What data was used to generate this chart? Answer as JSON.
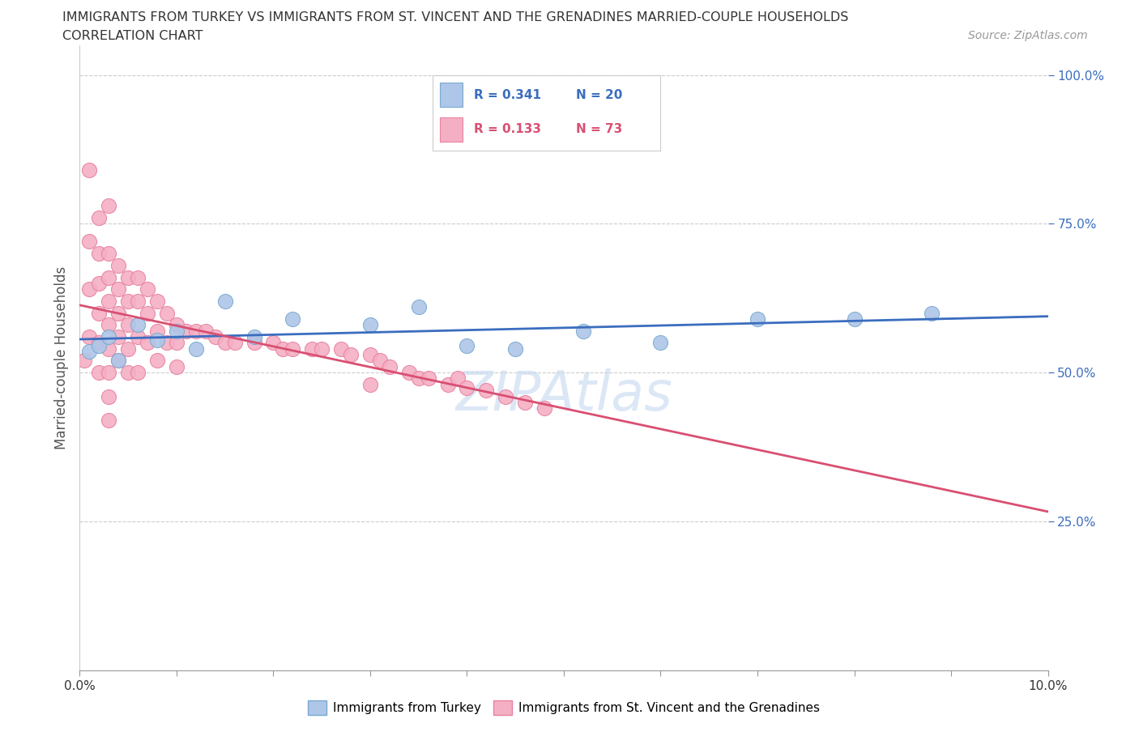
{
  "title_line1": "IMMIGRANTS FROM TURKEY VS IMMIGRANTS FROM ST. VINCENT AND THE GRENADINES MARRIED-COUPLE HOUSEHOLDS",
  "title_line2": "CORRELATION CHART",
  "source_text": "Source: ZipAtlas.com",
  "ylabel": "Married-couple Households",
  "legend_turkey_R": "R = 0.341",
  "legend_turkey_N": "N = 20",
  "legend_svg_R": "R = 0.133",
  "legend_svg_N": "N = 73",
  "turkey_color": "#aec6e8",
  "turkey_edge_color": "#7aaad0",
  "svg_color": "#f4afc4",
  "svg_edge_color": "#e882a0",
  "turkey_line_color": "#3b6dbf",
  "svg_line_color": "#d94f72",
  "watermark": "ZIPAtlas",
  "xlim": [
    0.0,
    0.1
  ],
  "ylim": [
    0.0,
    1.05
  ],
  "background_color": "#ffffff",
  "grid_color": "#cccccc",
  "turkey_x": [
    0.001,
    0.002,
    0.003,
    0.004,
    0.006,
    0.008,
    0.01,
    0.012,
    0.015,
    0.018,
    0.022,
    0.03,
    0.035,
    0.04,
    0.045,
    0.052,
    0.06,
    0.07,
    0.08,
    0.088
  ],
  "turkey_y": [
    0.535,
    0.545,
    0.56,
    0.52,
    0.58,
    0.555,
    0.57,
    0.54,
    0.62,
    0.56,
    0.59,
    0.58,
    0.61,
    0.545,
    0.54,
    0.57,
    0.55,
    0.59,
    0.59,
    0.6
  ],
  "svg_x": [
    0.0005,
    0.001,
    0.001,
    0.001,
    0.001,
    0.002,
    0.002,
    0.002,
    0.002,
    0.002,
    0.002,
    0.003,
    0.003,
    0.003,
    0.003,
    0.003,
    0.003,
    0.003,
    0.003,
    0.003,
    0.004,
    0.004,
    0.004,
    0.004,
    0.004,
    0.005,
    0.005,
    0.005,
    0.005,
    0.005,
    0.006,
    0.006,
    0.006,
    0.006,
    0.007,
    0.007,
    0.007,
    0.008,
    0.008,
    0.008,
    0.009,
    0.009,
    0.01,
    0.01,
    0.01,
    0.011,
    0.012,
    0.013,
    0.014,
    0.015,
    0.016,
    0.018,
    0.02,
    0.021,
    0.022,
    0.024,
    0.025,
    0.027,
    0.028,
    0.03,
    0.03,
    0.031,
    0.032,
    0.034,
    0.035,
    0.036,
    0.038,
    0.039,
    0.04,
    0.042,
    0.044,
    0.046,
    0.048
  ],
  "svg_y": [
    0.52,
    0.84,
    0.72,
    0.64,
    0.56,
    0.76,
    0.7,
    0.65,
    0.6,
    0.55,
    0.5,
    0.7,
    0.66,
    0.62,
    0.58,
    0.54,
    0.5,
    0.46,
    0.42,
    0.78,
    0.68,
    0.64,
    0.6,
    0.56,
    0.52,
    0.66,
    0.62,
    0.58,
    0.54,
    0.5,
    0.66,
    0.62,
    0.56,
    0.5,
    0.64,
    0.6,
    0.55,
    0.62,
    0.57,
    0.52,
    0.6,
    0.55,
    0.58,
    0.55,
    0.51,
    0.57,
    0.57,
    0.57,
    0.56,
    0.55,
    0.55,
    0.55,
    0.55,
    0.54,
    0.54,
    0.54,
    0.54,
    0.54,
    0.53,
    0.53,
    0.48,
    0.52,
    0.51,
    0.5,
    0.49,
    0.49,
    0.48,
    0.49,
    0.475,
    0.47,
    0.46,
    0.45,
    0.44
  ]
}
